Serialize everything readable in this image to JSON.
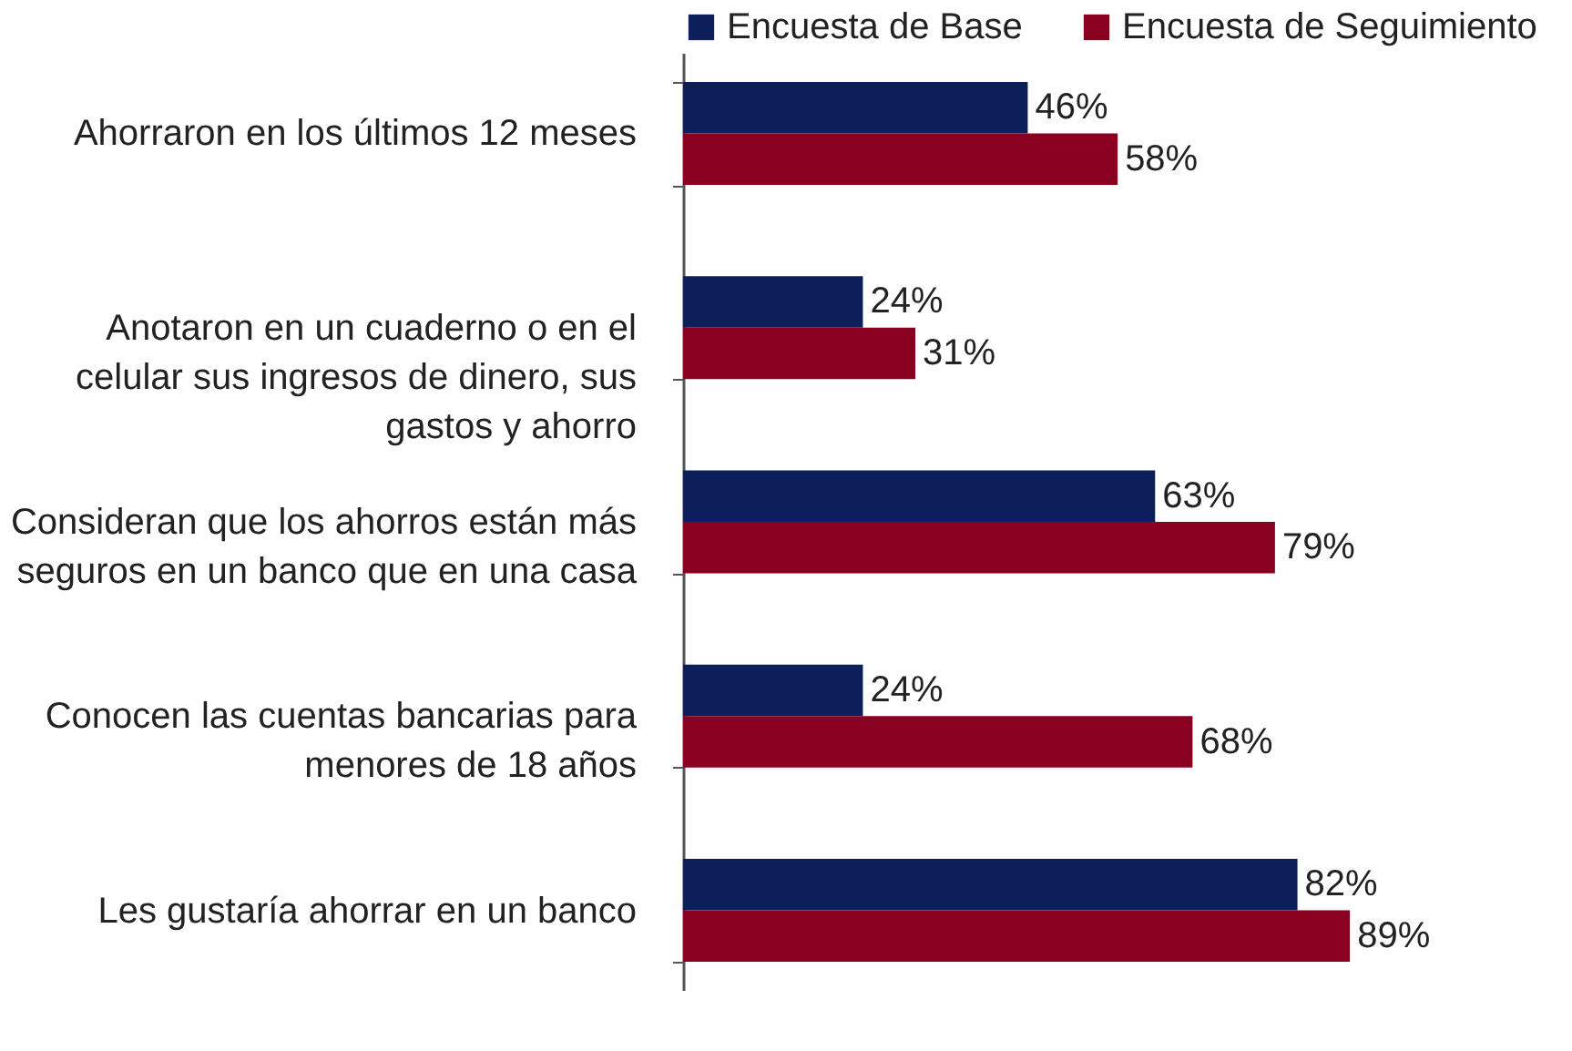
{
  "chart_data": {
    "type": "bar",
    "orientation": "horizontal",
    "legend": "top",
    "categories": [
      "Ahorraron en los últimos 12 meses",
      "Anotaron en un cuaderno o en el celular sus ingresos de dinero, sus gastos y ahorro",
      "Consideran que los ahorros están más seguros en un banco que en una casa",
      "Conocen las cuentas bancarias para menores de 18 años",
      "Les gustaría ahorrar en un banco"
    ],
    "series": [
      {
        "name": "Encuesta de Base",
        "color": "#0c1f5b",
        "values": [
          46,
          24,
          63,
          24,
          82
        ],
        "value_labels": [
          "46%",
          "24%",
          "63%",
          "24%",
          "82%"
        ]
      },
      {
        "name": "Encuesta de Seguimiento",
        "color": "#8a0020",
        "values": [
          58,
          31,
          79,
          68,
          89
        ],
        "value_labels": [
          "58%",
          "31%",
          "79%",
          "68%",
          "89%"
        ]
      }
    ]
  }
}
